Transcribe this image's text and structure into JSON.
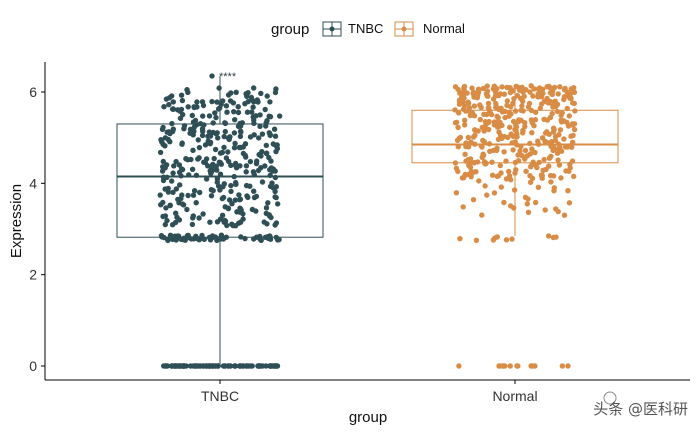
{
  "chart_data": {
    "type": "boxplot",
    "title": "",
    "xlabel": "group",
    "ylabel": "Expression",
    "ylim": [
      -0.35,
      6.65
    ],
    "yticks": [
      0,
      2,
      4,
      6
    ],
    "categories": [
      "TNBC",
      "Normal"
    ],
    "legend": {
      "title": "group",
      "position": "top",
      "entries": [
        "TNBC",
        "Normal"
      ]
    },
    "colors": {
      "TNBC": "#2f4f56",
      "Normal": "#d98c45"
    },
    "annotation": "****",
    "series": [
      {
        "name": "TNBC",
        "min": 0,
        "q1": 2.82,
        "median": 4.15,
        "q3": 5.3,
        "max": 6.35,
        "points_dense_range": [
          2.75,
          6.1
        ],
        "zero_cluster": true
      },
      {
        "name": "Normal",
        "min": 2.85,
        "q1": 4.45,
        "median": 4.85,
        "q3": 5.6,
        "max": 6.1,
        "points_dense_range": [
          2.75,
          6.15
        ],
        "zero_cluster": true
      }
    ]
  },
  "watermark": "头条 @医科研"
}
